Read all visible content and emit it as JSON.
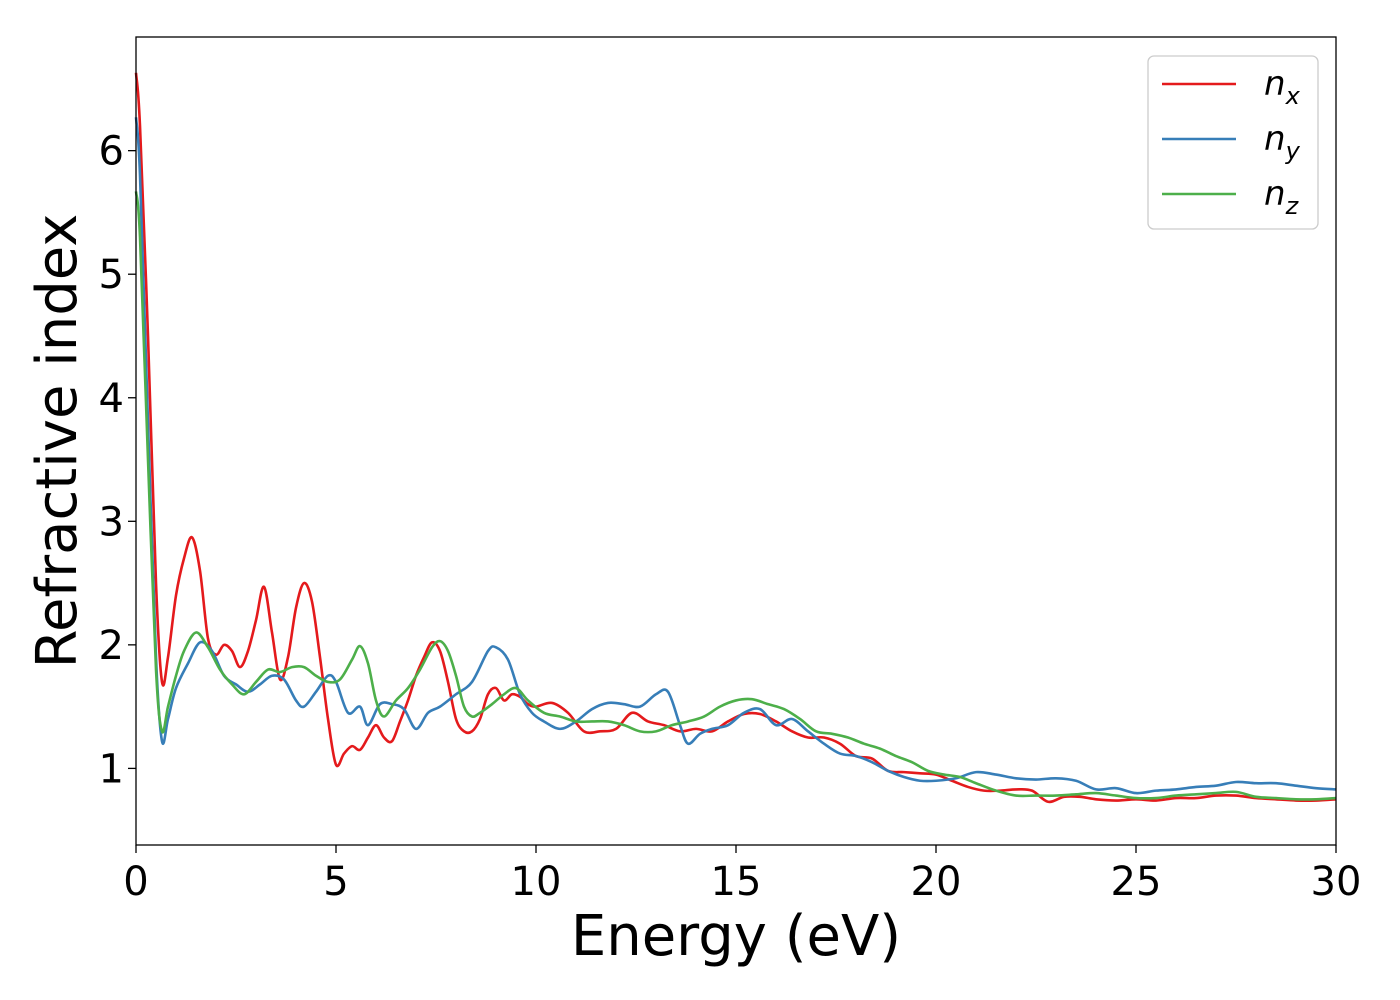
{
  "chart_data": {
    "type": "line",
    "title": "",
    "xlabel": "Energy (eV)",
    "ylabel": "Refractive index",
    "xlim": [
      0,
      30
    ],
    "ylim": [
      0.38,
      6.92
    ],
    "xticks": [
      0,
      5,
      10,
      15,
      20,
      25,
      30
    ],
    "yticks": [
      1,
      2,
      3,
      4,
      5,
      6
    ],
    "grid": false,
    "legend_position": "top-right",
    "series": [
      {
        "name": "n",
        "subscript": "x",
        "color": "#e41a1c",
        "x": [
          0,
          0.1,
          0.3,
          0.5,
          0.65,
          0.8,
          1.0,
          1.2,
          1.4,
          1.6,
          1.8,
          2.0,
          2.2,
          2.4,
          2.6,
          2.8,
          3.0,
          3.2,
          3.4,
          3.6,
          3.8,
          4.0,
          4.2,
          4.4,
          4.6,
          4.8,
          5.0,
          5.2,
          5.4,
          5.6,
          5.8,
          6.0,
          6.2,
          6.4,
          6.6,
          6.8,
          7.0,
          7.2,
          7.4,
          7.6,
          7.8,
          8.0,
          8.2,
          8.4,
          8.6,
          8.8,
          9.0,
          9.2,
          9.4,
          9.6,
          9.8,
          10.0,
          10.4,
          10.8,
          11.2,
          11.6,
          12.0,
          12.4,
          12.8,
          13.2,
          13.6,
          14.0,
          14.4,
          14.8,
          15.2,
          15.6,
          16.0,
          16.4,
          16.8,
          17.2,
          17.6,
          18.0,
          18.4,
          18.8,
          19.2,
          19.6,
          20.0,
          20.4,
          20.8,
          21.2,
          21.6,
          22.0,
          22.4,
          22.8,
          23.2,
          23.6,
          24.0,
          24.5,
          25.0,
          25.5,
          26.0,
          26.5,
          27.0,
          27.5,
          28.0,
          28.5,
          29.0,
          29.5,
          30.0
        ],
        "y": [
          6.63,
          6.2,
          4.5,
          2.5,
          1.7,
          1.9,
          2.4,
          2.7,
          2.87,
          2.6,
          2.05,
          1.92,
          2.0,
          1.95,
          1.82,
          1.95,
          2.2,
          2.47,
          2.1,
          1.72,
          1.9,
          2.3,
          2.5,
          2.35,
          1.9,
          1.4,
          1.03,
          1.12,
          1.18,
          1.15,
          1.25,
          1.35,
          1.25,
          1.22,
          1.38,
          1.55,
          1.75,
          1.9,
          2.02,
          1.95,
          1.7,
          1.4,
          1.3,
          1.3,
          1.4,
          1.6,
          1.65,
          1.55,
          1.6,
          1.58,
          1.52,
          1.5,
          1.53,
          1.45,
          1.3,
          1.3,
          1.32,
          1.45,
          1.38,
          1.35,
          1.3,
          1.32,
          1.3,
          1.38,
          1.44,
          1.44,
          1.38,
          1.3,
          1.25,
          1.25,
          1.2,
          1.1,
          1.08,
          0.98,
          0.97,
          0.96,
          0.95,
          0.9,
          0.85,
          0.82,
          0.82,
          0.83,
          0.82,
          0.73,
          0.77,
          0.77,
          0.75,
          0.74,
          0.75,
          0.74,
          0.76,
          0.76,
          0.78,
          0.78,
          0.76,
          0.75,
          0.74,
          0.74,
          0.75
        ]
      },
      {
        "name": "n",
        "subscript": "y",
        "color": "#377eb8",
        "x": [
          0,
          0.1,
          0.3,
          0.5,
          0.65,
          0.8,
          1.0,
          1.3,
          1.6,
          1.9,
          2.2,
          2.5,
          2.8,
          3.1,
          3.4,
          3.7,
          4.0,
          4.2,
          4.5,
          4.8,
          5.0,
          5.3,
          5.6,
          5.8,
          6.1,
          6.4,
          6.7,
          7.0,
          7.3,
          7.6,
          8.0,
          8.4,
          8.8,
          9.0,
          9.3,
          9.6,
          9.9,
          10.2,
          10.6,
          11.0,
          11.4,
          11.8,
          12.2,
          12.6,
          13.0,
          13.3,
          13.6,
          13.8,
          14.1,
          14.4,
          14.8,
          15.2,
          15.6,
          16.0,
          16.4,
          16.8,
          17.2,
          17.6,
          18.0,
          18.4,
          18.8,
          19.2,
          19.6,
          20.0,
          20.5,
          21.0,
          21.5,
          22.0,
          22.5,
          23.0,
          23.5,
          24.0,
          24.5,
          25.0,
          25.5,
          26.0,
          26.5,
          27.0,
          27.5,
          28.0,
          28.5,
          29.0,
          29.5,
          30.0
        ],
        "y": [
          6.27,
          5.8,
          3.8,
          1.9,
          1.22,
          1.4,
          1.65,
          1.85,
          2.02,
          1.95,
          1.75,
          1.68,
          1.62,
          1.68,
          1.75,
          1.72,
          1.55,
          1.5,
          1.62,
          1.75,
          1.7,
          1.45,
          1.5,
          1.35,
          1.52,
          1.52,
          1.48,
          1.32,
          1.45,
          1.5,
          1.6,
          1.7,
          1.95,
          1.98,
          1.88,
          1.6,
          1.45,
          1.38,
          1.32,
          1.38,
          1.48,
          1.53,
          1.52,
          1.5,
          1.6,
          1.62,
          1.35,
          1.2,
          1.28,
          1.32,
          1.35,
          1.45,
          1.48,
          1.35,
          1.4,
          1.3,
          1.2,
          1.12,
          1.1,
          1.05,
          0.98,
          0.93,
          0.9,
          0.9,
          0.92,
          0.97,
          0.95,
          0.92,
          0.91,
          0.92,
          0.9,
          0.83,
          0.84,
          0.8,
          0.82,
          0.83,
          0.85,
          0.86,
          0.89,
          0.88,
          0.88,
          0.86,
          0.84,
          0.83
        ]
      },
      {
        "name": "n",
        "subscript": "z",
        "color": "#4daf4a",
        "x": [
          0,
          0.1,
          0.3,
          0.5,
          0.65,
          0.8,
          1.0,
          1.2,
          1.5,
          1.8,
          2.1,
          2.4,
          2.7,
          3.0,
          3.3,
          3.6,
          3.9,
          4.2,
          4.5,
          4.8,
          5.1,
          5.4,
          5.6,
          5.8,
          6.0,
          6.2,
          6.5,
          6.8,
          7.1,
          7.4,
          7.6,
          7.8,
          8.0,
          8.2,
          8.4,
          8.6,
          8.9,
          9.2,
          9.5,
          9.8,
          10.2,
          10.6,
          11.0,
          11.4,
          11.8,
          12.2,
          12.6,
          13.0,
          13.4,
          13.8,
          14.2,
          14.6,
          15.0,
          15.4,
          15.8,
          16.2,
          16.6,
          17.0,
          17.4,
          17.8,
          18.2,
          18.6,
          19.0,
          19.4,
          19.8,
          20.2,
          20.6,
          21.0,
          21.5,
          22.0,
          22.5,
          23.0,
          23.5,
          24.0,
          24.5,
          25.0,
          25.5,
          26.0,
          26.5,
          27.0,
          27.5,
          28.0,
          28.5,
          29.0,
          29.5,
          30.0
        ],
        "y": [
          5.67,
          5.3,
          3.5,
          1.8,
          1.3,
          1.5,
          1.75,
          1.95,
          2.1,
          1.98,
          1.8,
          1.68,
          1.6,
          1.7,
          1.8,
          1.78,
          1.82,
          1.82,
          1.75,
          1.7,
          1.72,
          1.88,
          1.99,
          1.85,
          1.55,
          1.42,
          1.55,
          1.65,
          1.8,
          1.98,
          2.03,
          1.95,
          1.75,
          1.5,
          1.42,
          1.45,
          1.52,
          1.6,
          1.65,
          1.55,
          1.45,
          1.42,
          1.38,
          1.38,
          1.38,
          1.35,
          1.3,
          1.3,
          1.35,
          1.38,
          1.42,
          1.5,
          1.55,
          1.56,
          1.52,
          1.48,
          1.4,
          1.3,
          1.28,
          1.25,
          1.2,
          1.16,
          1.1,
          1.05,
          0.98,
          0.95,
          0.93,
          0.88,
          0.82,
          0.78,
          0.78,
          0.78,
          0.79,
          0.8,
          0.78,
          0.76,
          0.76,
          0.78,
          0.79,
          0.8,
          0.81,
          0.77,
          0.76,
          0.75,
          0.75,
          0.76
        ]
      }
    ]
  }
}
